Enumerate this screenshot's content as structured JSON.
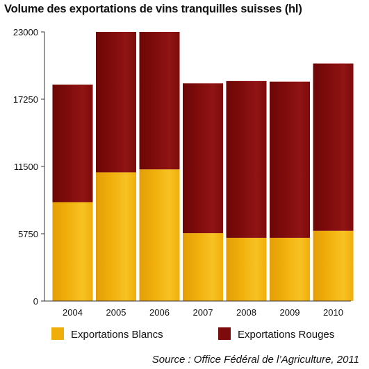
{
  "chart_data": {
    "type": "bar",
    "stacked": true,
    "title": "Volume des exportations de vins tranquilles suisses (hl)",
    "xlabel": "",
    "ylabel": "",
    "categories": [
      "2004",
      "2005",
      "2006",
      "2007",
      "2008",
      "2009",
      "2010"
    ],
    "series": [
      {
        "name": "Exportations Blancs",
        "color": "#F0AE0B",
        "values": [
          8450,
          11000,
          11250,
          5800,
          5400,
          5400,
          6000
        ]
      },
      {
        "name": "Exportations Rouges",
        "color": "#7E0B0B",
        "values": [
          10050,
          12000,
          11750,
          12800,
          13400,
          13350,
          14300
        ]
      }
    ],
    "ylim": [
      0,
      23000
    ],
    "yticks": [
      "0",
      "5750",
      "11500",
      "17250",
      "23000"
    ],
    "grid": false,
    "legend_position": "bottom",
    "source": "Source : Office Fédéral de l’Agriculture, 2011"
  }
}
